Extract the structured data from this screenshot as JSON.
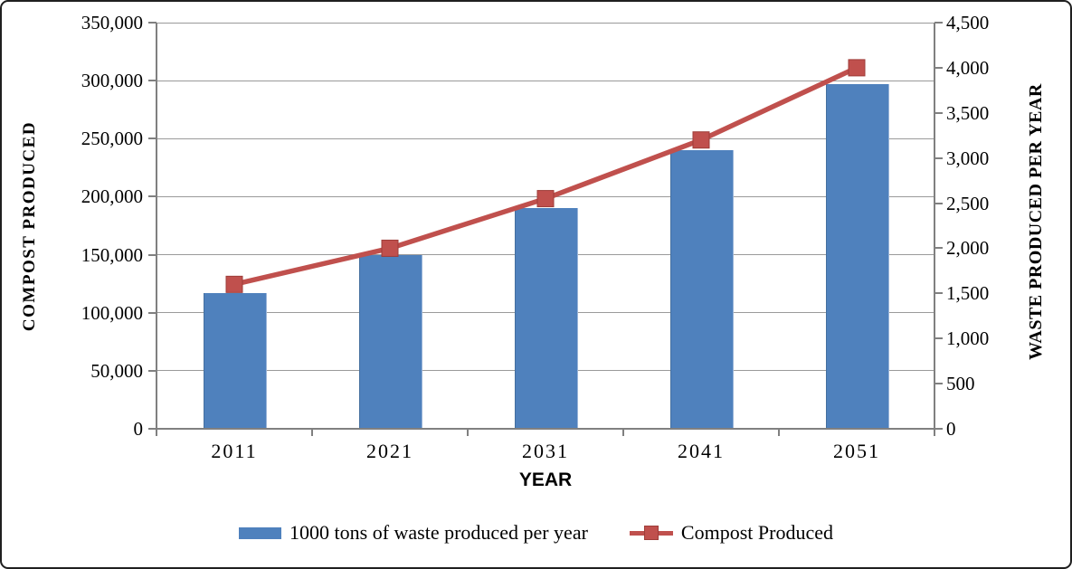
{
  "figure": {
    "x_axis_title": "YEAR",
    "left_axis_title": "COMPOST PRODUCED",
    "right_axis_title": "WASTE PRODUCED PER YEAR"
  },
  "legend": {
    "items": [
      {
        "label": "1000 tons of waste produced per year",
        "swatch": "bar-swatch"
      },
      {
        "label": "Compost Produced",
        "swatch": "line-marker-swatch"
      }
    ]
  },
  "colors": {
    "bar_fill": "#4F81BD",
    "line_stroke": "#C0504D",
    "marker_fill": "#C0504D",
    "gridline": "#9A9A9A",
    "axis_line": "#808080",
    "text": "#000000",
    "frame_border": "#1F1F1F"
  },
  "chart_data": {
    "type": "bar",
    "subtype": "combo-bar-line",
    "categories": [
      "2011",
      "2021",
      "2031",
      "2041",
      "2051"
    ],
    "series": [
      {
        "name": "1000 tons of waste produced per year",
        "type": "bar",
        "axis": "left",
        "values": [
          117000,
          150000,
          190000,
          240000,
          297000
        ]
      },
      {
        "name": "Compost Produced",
        "type": "line",
        "axis": "right",
        "marker": "square",
        "values": [
          1600,
          2000,
          2550,
          3200,
          4000
        ]
      }
    ],
    "title": "",
    "xlabel": "YEAR",
    "left_axis": {
      "label": "COMPOST PRODUCED",
      "min": 0,
      "max": 350000,
      "step": 50000,
      "tick_labels": [
        "0",
        "50,000",
        "100,000",
        "150,000",
        "200,000",
        "250,000",
        "300,000",
        "350,000"
      ]
    },
    "right_axis": {
      "label": "WASTE PRODUCED PER YEAR",
      "min": 0,
      "max": 4500,
      "step": 500,
      "tick_labels": [
        "0",
        "500",
        "1,000",
        "1,500",
        "2,000",
        "2,500",
        "3,000",
        "3,500",
        "4,000",
        "4,500"
      ]
    },
    "grid": true,
    "legend_position": "bottom"
  }
}
